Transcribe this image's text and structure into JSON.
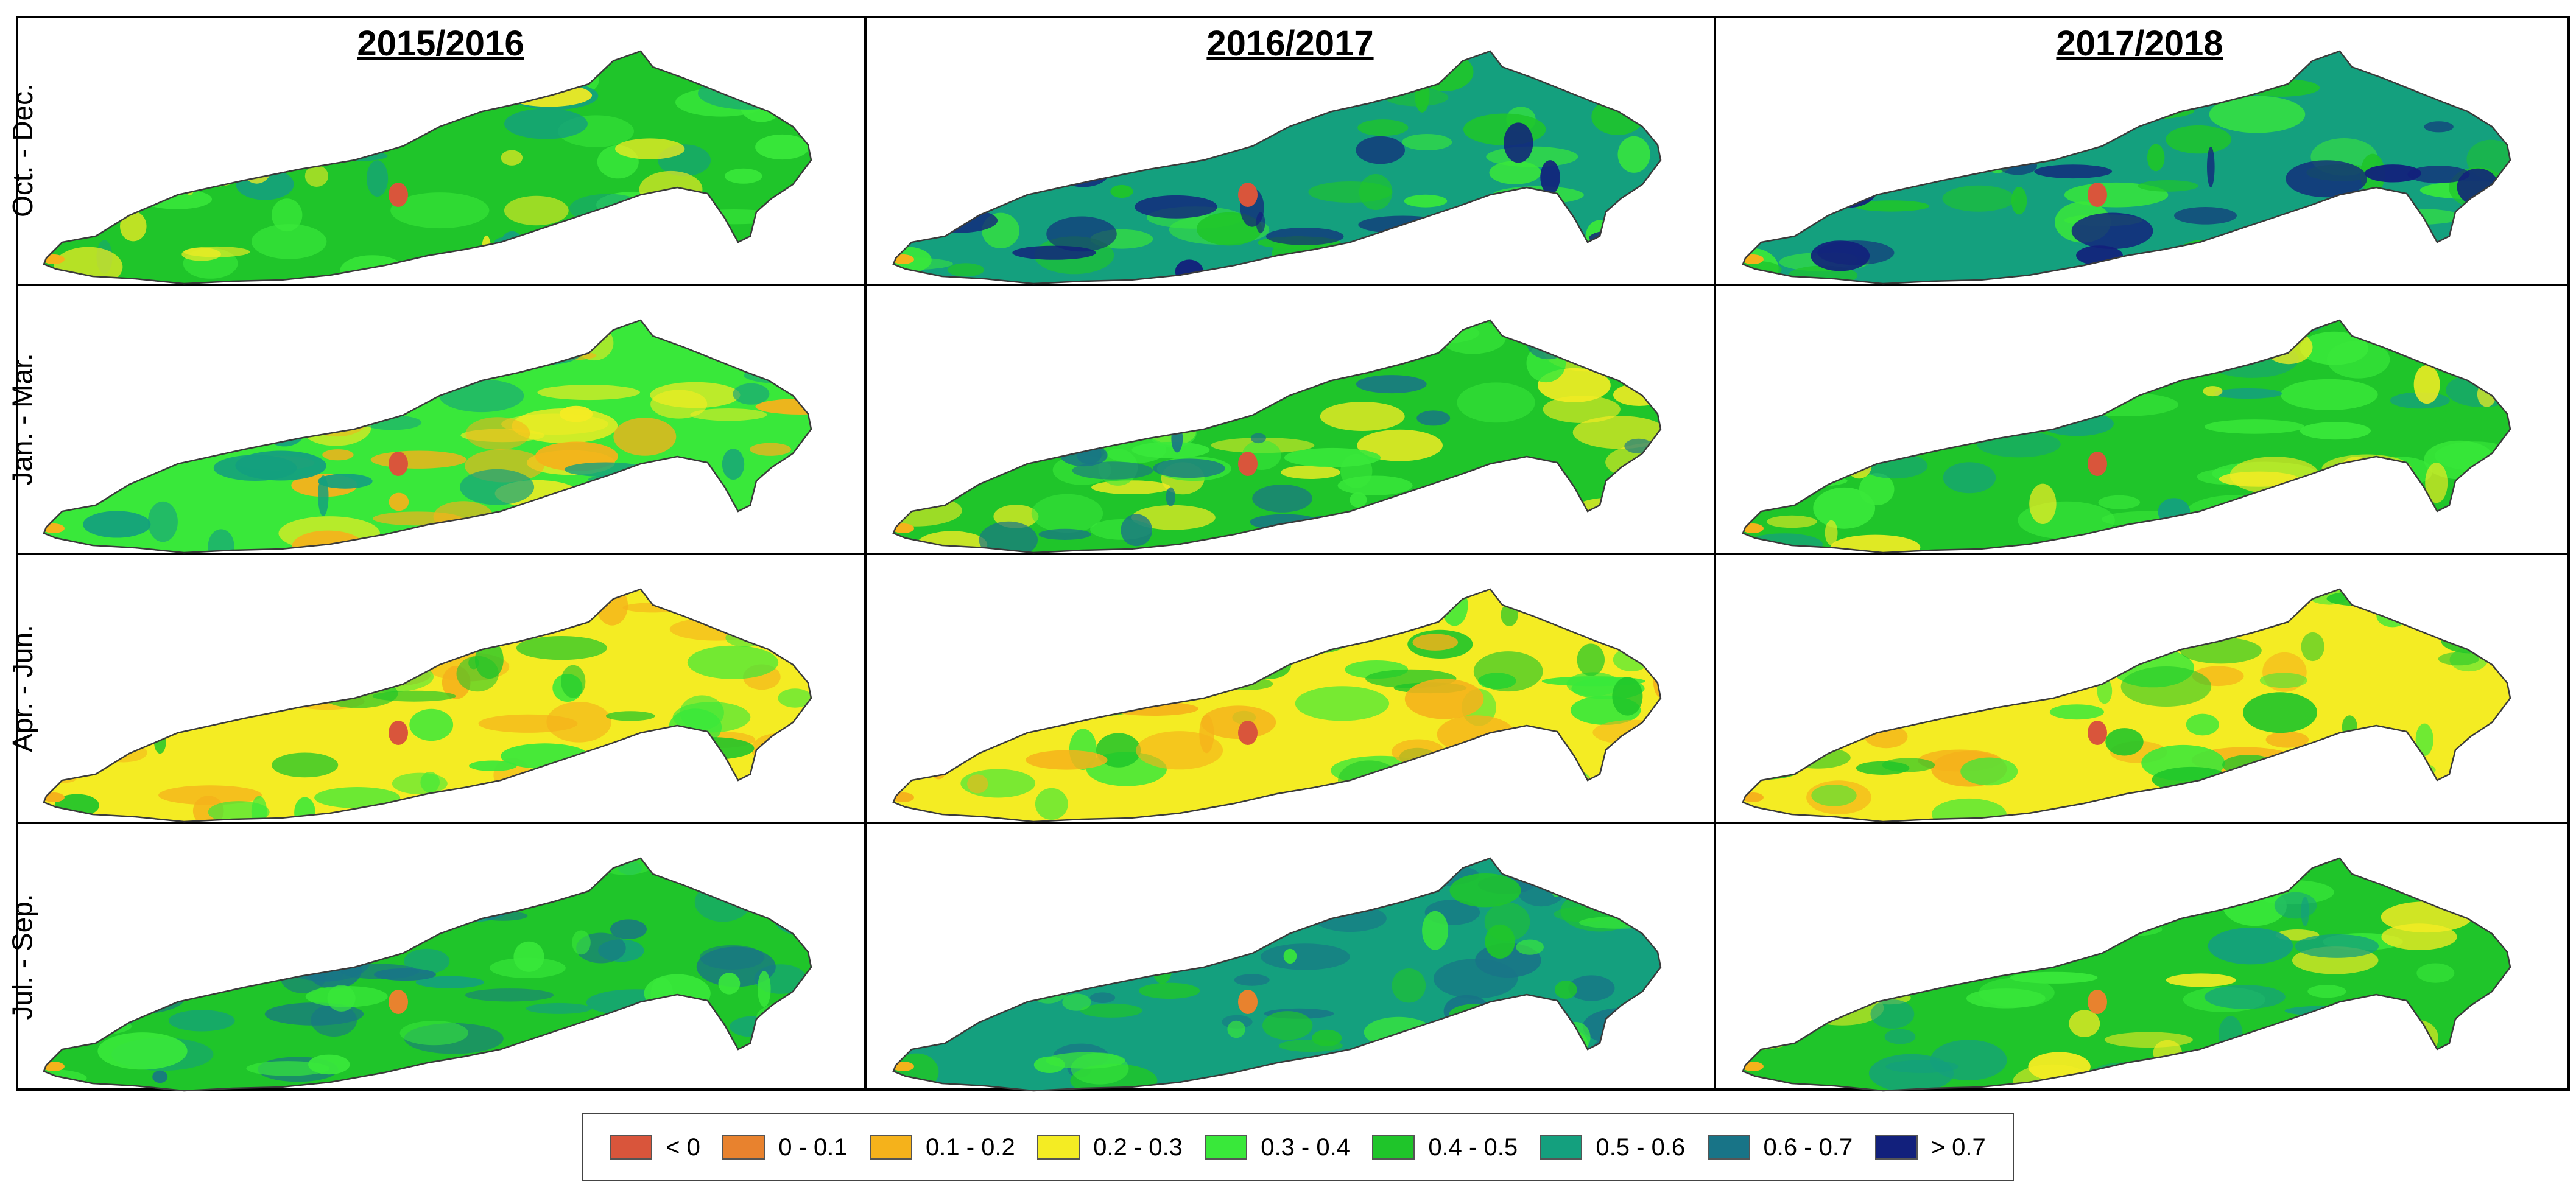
{
  "columns": [
    "2015/2016",
    "2016/2017",
    "2017/2018"
  ],
  "rows": [
    "Oct. - Dec.",
    "Jan. - Mar.",
    "Apr. - Jun.",
    "Jul. - Sep."
  ],
  "legend": [
    {
      "label": "< 0",
      "color": "#d9553b"
    },
    {
      "label": "0 - 0.1",
      "color": "#e8822e"
    },
    {
      "label": "0.1 - 0.2",
      "color": "#f5b21b"
    },
    {
      "label": "0.2 - 0.3",
      "color": "#f4ec23"
    },
    {
      "label": "0.3 - 0.4",
      "color": "#39e83a"
    },
    {
      "label": "0.4 - 0.5",
      "color": "#1fc52a"
    },
    {
      "label": "0.5 - 0.6",
      "color": "#14a07e"
    },
    {
      "label": "0.6 - 0.7",
      "color": "#187487"
    },
    {
      "label": "> 0.7",
      "color": "#12207c"
    }
  ],
  "panels": [
    [
      {
        "base": 5,
        "patches": [
          4,
          6,
          3
        ],
        "hotspot": 0
      },
      {
        "base": 6,
        "patches": [
          4,
          5,
          8
        ],
        "hotspot": 0
      },
      {
        "base": 6,
        "patches": [
          4,
          5,
          8
        ],
        "hotspot": 0
      }
    ],
    [
      {
        "base": 4,
        "patches": [
          3,
          2,
          6
        ],
        "hotspot": 0
      },
      {
        "base": 5,
        "patches": [
          3,
          4,
          7
        ],
        "hotspot": 0
      },
      {
        "base": 5,
        "patches": [
          4,
          6,
          3
        ],
        "hotspot": 0
      }
    ],
    [
      {
        "base": 3,
        "patches": [
          2,
          4,
          5
        ],
        "hotspot": 0
      },
      {
        "base": 3,
        "patches": [
          4,
          5,
          2
        ],
        "hotspot": 0
      },
      {
        "base": 3,
        "patches": [
          2,
          4,
          5
        ],
        "hotspot": 0
      }
    ],
    [
      {
        "base": 5,
        "patches": [
          6,
          7,
          4
        ],
        "hotspot": 1
      },
      {
        "base": 6,
        "patches": [
          7,
          5,
          4
        ],
        "hotspot": 1
      },
      {
        "base": 5,
        "patches": [
          4,
          3,
          6
        ],
        "hotspot": 1
      }
    ]
  ]
}
